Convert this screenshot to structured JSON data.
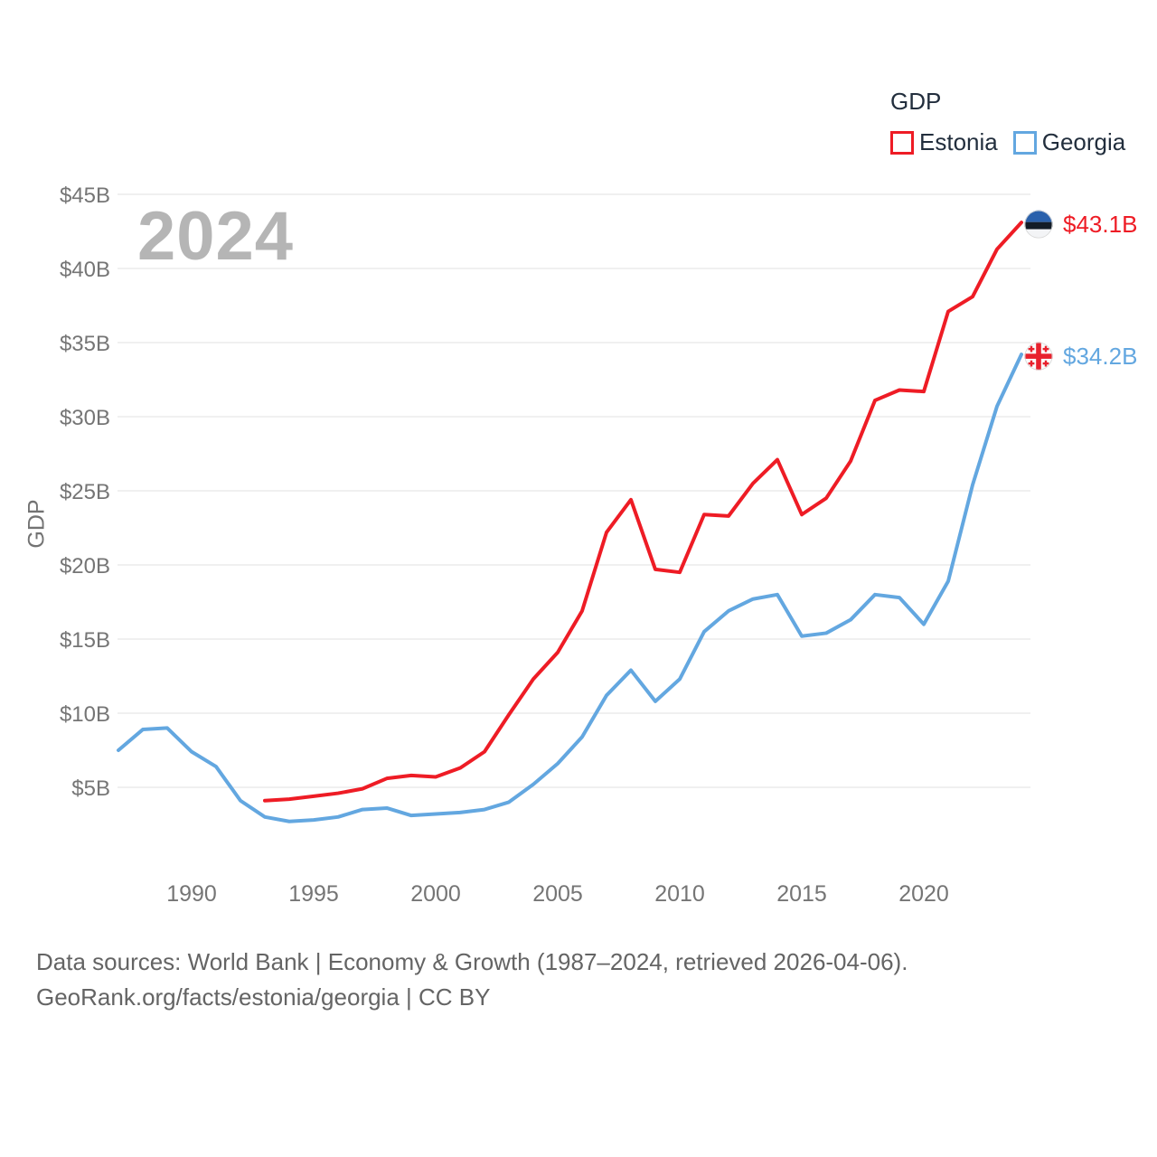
{
  "page": {
    "background": "#ffffff"
  },
  "legend": {
    "title": "GDP",
    "items": [
      {
        "label": "Estonia",
        "color": "#ee1c25"
      },
      {
        "label": "Georgia",
        "color": "#63a7e0"
      }
    ]
  },
  "watermark": "2024",
  "footer": {
    "line1": "Data sources: World Bank | Economy & Growth (1987–2024, retrieved 2026-04-06).",
    "line2": "GeoRank.org/facts/estonia/georgia | CC BY"
  },
  "icons": {
    "estonia_flag_icon": "circle-estonia-tricolor-flag",
    "georgia_flag_icon": "circle-georgia-five-cross-flag"
  },
  "colors": {
    "estonia_line": "#ee1c25",
    "georgia_line": "#63a7e0",
    "grid": "#e8e8e8",
    "axis_text": "#757575",
    "legend_text": "#222e3d",
    "watermark_text": "#b5b5b5",
    "footer_text": "#646464"
  },
  "chart_data": {
    "type": "line",
    "title": "GDP",
    "xlabel": "",
    "ylabel": "GDP",
    "watermark": "2024",
    "grid": "horizontal",
    "legend_position": "top-right",
    "xlim": [
      1986.5,
      2025.5
    ],
    "ylim": [
      0,
      46
    ],
    "x_ticks": [
      1990,
      1995,
      2000,
      2005,
      2010,
      2015,
      2020
    ],
    "y_ticks": [
      5,
      10,
      15,
      20,
      25,
      30,
      35,
      40,
      45
    ],
    "y_tick_labels": [
      "$5B",
      "$10B",
      "$15B",
      "$20B",
      "$25B",
      "$30B",
      "$35B",
      "$40B",
      "$45B"
    ],
    "series": [
      {
        "name": "Estonia",
        "color": "#ee1c25",
        "flag": "estonia",
        "end_label": "$43.1B",
        "years": [
          1993,
          1994,
          1995,
          1996,
          1997,
          1998,
          1999,
          2000,
          2001,
          2002,
          2003,
          2004,
          2005,
          2006,
          2007,
          2008,
          2009,
          2010,
          2011,
          2012,
          2013,
          2014,
          2015,
          2016,
          2017,
          2018,
          2019,
          2020,
          2021,
          2022,
          2023,
          2024
        ],
        "values": [
          4.1,
          4.2,
          4.4,
          4.6,
          4.9,
          5.6,
          5.8,
          5.7,
          6.3,
          7.4,
          9.9,
          12.3,
          14.1,
          16.9,
          22.2,
          24.4,
          19.7,
          19.5,
          23.4,
          23.3,
          25.5,
          27.1,
          23.4,
          24.5,
          27.0,
          31.1,
          31.8,
          31.7,
          37.1,
          38.1,
          41.3,
          43.1
        ]
      },
      {
        "name": "Georgia",
        "color": "#63a7e0",
        "flag": "georgia",
        "end_label": "$34.2B",
        "years": [
          1987,
          1988,
          1989,
          1990,
          1991,
          1992,
          1993,
          1994,
          1995,
          1996,
          1997,
          1998,
          1999,
          2000,
          2001,
          2002,
          2003,
          2004,
          2005,
          2006,
          2007,
          2008,
          2009,
          2010,
          2011,
          2012,
          2013,
          2014,
          2015,
          2016,
          2017,
          2018,
          2019,
          2020,
          2021,
          2022,
          2023,
          2024
        ],
        "values": [
          7.5,
          8.9,
          9.0,
          7.4,
          6.4,
          4.1,
          3.0,
          2.7,
          2.8,
          3.0,
          3.5,
          3.6,
          3.1,
          3.2,
          3.3,
          3.5,
          4.0,
          5.2,
          6.6,
          8.4,
          11.2,
          12.9,
          10.8,
          12.3,
          15.5,
          16.9,
          17.7,
          18.0,
          15.2,
          15.4,
          16.3,
          18.0,
          17.8,
          16.0,
          18.9,
          25.4,
          30.7,
          34.2
        ]
      }
    ]
  }
}
